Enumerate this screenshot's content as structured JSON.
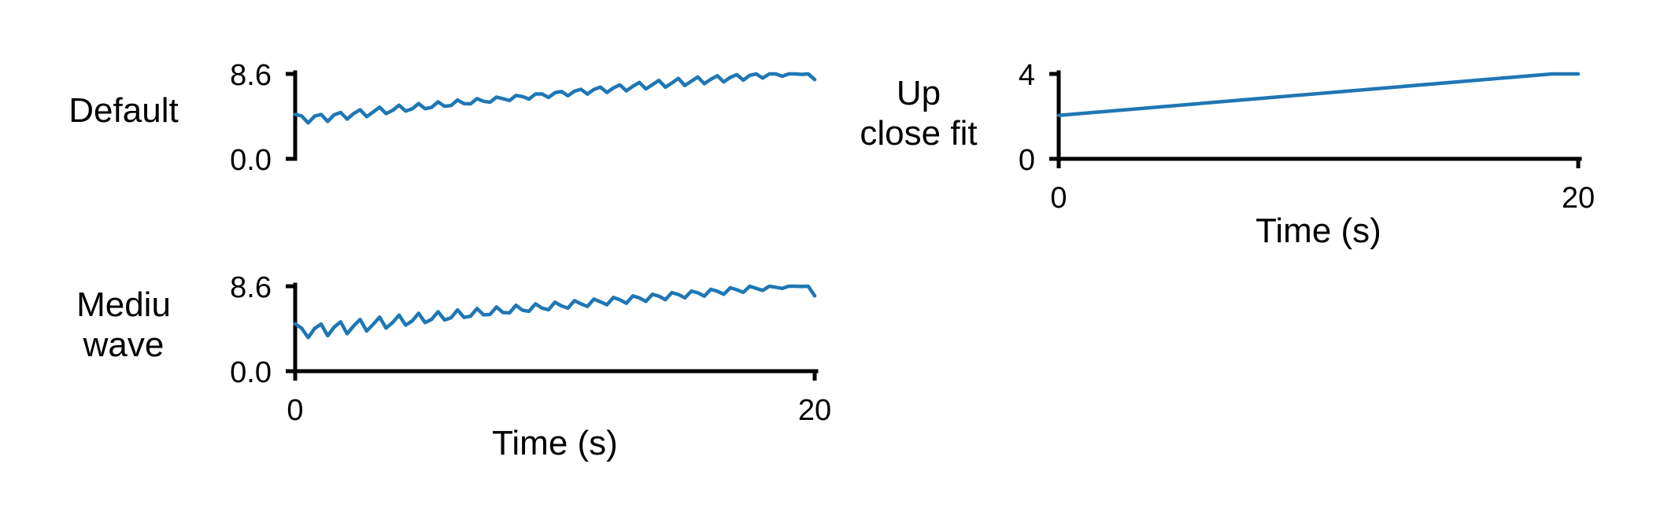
{
  "chart_data": [
    {
      "type": "line",
      "row_label": [
        "Default"
      ],
      "xlabel": "",
      "ylabel": "",
      "xlim": [
        0,
        20
      ],
      "ylim": [
        0,
        8.6
      ],
      "yticks": [
        "0.0",
        "8.6"
      ],
      "xticks": [],
      "series": [
        {
          "color": "#1f77b4",
          "x": [
            0,
            0.25,
            0.5,
            0.75,
            1,
            1.25,
            1.5,
            1.75,
            2,
            2.25,
            2.5,
            2.75,
            3,
            3.25,
            3.5,
            3.75,
            4,
            4.25,
            4.5,
            4.75,
            5,
            5.25,
            5.5,
            5.75,
            6,
            6.25,
            6.5,
            6.75,
            7,
            7.25,
            7.5,
            7.75,
            8,
            8.25,
            8.5,
            8.75,
            9,
            9.25,
            9.5,
            9.75,
            10,
            10.25,
            10.5,
            10.75,
            11,
            11.25,
            11.5,
            11.75,
            12,
            12.25,
            12.5,
            12.75,
            13,
            13.25,
            13.5,
            13.75,
            14,
            14.25,
            14.5,
            14.75,
            15,
            15.25,
            15.5,
            15.75,
            16,
            16.25,
            16.5,
            16.75,
            17,
            17.25,
            17.5,
            17.75,
            18,
            18.25,
            18.5,
            18.75,
            19,
            19.25,
            19.5,
            19.75,
            20
          ],
          "y": [
            4.5,
            4.34,
            3.64,
            4.33,
            4.49,
            3.79,
            4.46,
            4.7,
            4.02,
            4.59,
            4.97,
            4.28,
            4.74,
            5.23,
            4.58,
            4.91,
            5.43,
            4.84,
            5.06,
            5.6,
            5.08,
            5.21,
            5.77,
            5.33,
            5.4,
            5.96,
            5.59,
            5.57,
            6.1,
            5.83,
            5.73,
            6.25,
            6.09,
            5.9,
            6.42,
            6.31,
            6.05,
            6.57,
            6.57,
            6.22,
            6.7,
            6.82,
            6.39,
            6.86,
            7.04,
            6.55,
            7.03,
            7.26,
            6.72,
            7.18,
            7.49,
            6.88,
            7.35,
            7.74,
            7.08,
            7.51,
            7.95,
            7.26,
            7.68,
            8.15,
            7.43,
            7.87,
            8.29,
            7.61,
            8.05,
            8.42,
            7.79,
            8.25,
            8.53,
            7.97,
            8.46,
            8.6,
            8.17,
            8.6,
            8.6,
            8.36,
            8.6,
            8.6,
            8.55,
            8.6,
            8.03
          ]
        }
      ]
    },
    {
      "type": "line",
      "row_label": [
        "Mediu",
        "wave"
      ],
      "xlabel": "Time (s)",
      "ylabel": "",
      "xlim": [
        0,
        20
      ],
      "ylim": [
        0,
        8.6
      ],
      "yticks": [
        "0.0",
        "8.6"
      ],
      "xticks": [
        "0",
        "20"
      ],
      "series": [
        {
          "color": "#1f77b4",
          "x": [
            0,
            0.25,
            0.5,
            0.75,
            1,
            1.25,
            1.5,
            1.75,
            2,
            2.25,
            2.5,
            2.75,
            3,
            3.25,
            3.5,
            3.75,
            4,
            4.25,
            4.5,
            4.75,
            5,
            5.25,
            5.5,
            5.75,
            6,
            6.25,
            6.5,
            6.75,
            7,
            7.25,
            7.5,
            7.75,
            8,
            8.25,
            8.5,
            8.75,
            9,
            9.25,
            9.5,
            9.75,
            10,
            10.25,
            10.5,
            10.75,
            11,
            11.25,
            11.5,
            11.75,
            12,
            12.25,
            12.5,
            12.75,
            13,
            13.25,
            13.5,
            13.75,
            14,
            14.25,
            14.5,
            14.75,
            15,
            15.25,
            15.5,
            15.75,
            16,
            16.25,
            16.5,
            16.75,
            17,
            17.25,
            17.5,
            17.75,
            18,
            18.25,
            18.5,
            18.75,
            19,
            19.25,
            19.5,
            19.75,
            20
          ],
          "y": [
            4.8,
            4.34,
            3.4,
            4.33,
            4.77,
            3.58,
            4.46,
            4.99,
            3.79,
            4.58,
            5.24,
            4.06,
            4.74,
            5.47,
            4.36,
            4.92,
            5.68,
            4.66,
            5.08,
            5.86,
            4.92,
            5.24,
            6.02,
            5.18,
            5.41,
            6.2,
            5.44,
            5.57,
            6.35,
            5.7,
            5.74,
            6.5,
            5.94,
            5.9,
            6.67,
            6.17,
            6.06,
            6.82,
            6.39,
            6.22,
            6.98,
            6.61,
            6.38,
            7.14,
            6.82,
            6.55,
            7.3,
            7.02,
            6.72,
            7.46,
            7.22,
            6.88,
            7.62,
            7.41,
            7.06,
            7.78,
            7.6,
            7.24,
            7.95,
            7.77,
            7.42,
            8.11,
            7.94,
            7.6,
            8.29,
            8.09,
            7.79,
            8.44,
            8.25,
            7.98,
            8.6,
            8.38,
            8.18,
            8.6,
            8.5,
            8.38,
            8.6,
            8.6,
            8.58,
            8.6,
            7.62
          ]
        }
      ]
    },
    {
      "type": "line",
      "row_label": [
        "Up",
        "close fit"
      ],
      "xlabel": "Time (s)",
      "ylabel": "",
      "xlim": [
        0,
        20
      ],
      "ylim": [
        0,
        4
      ],
      "yticks": [
        "0",
        "4"
      ],
      "xticks": [
        "0",
        "20"
      ],
      "series": [
        {
          "color": "#1f77b4",
          "x": [
            0,
            19,
            20
          ],
          "y": [
            2.05,
            4.0,
            4.0
          ]
        }
      ]
    }
  ]
}
